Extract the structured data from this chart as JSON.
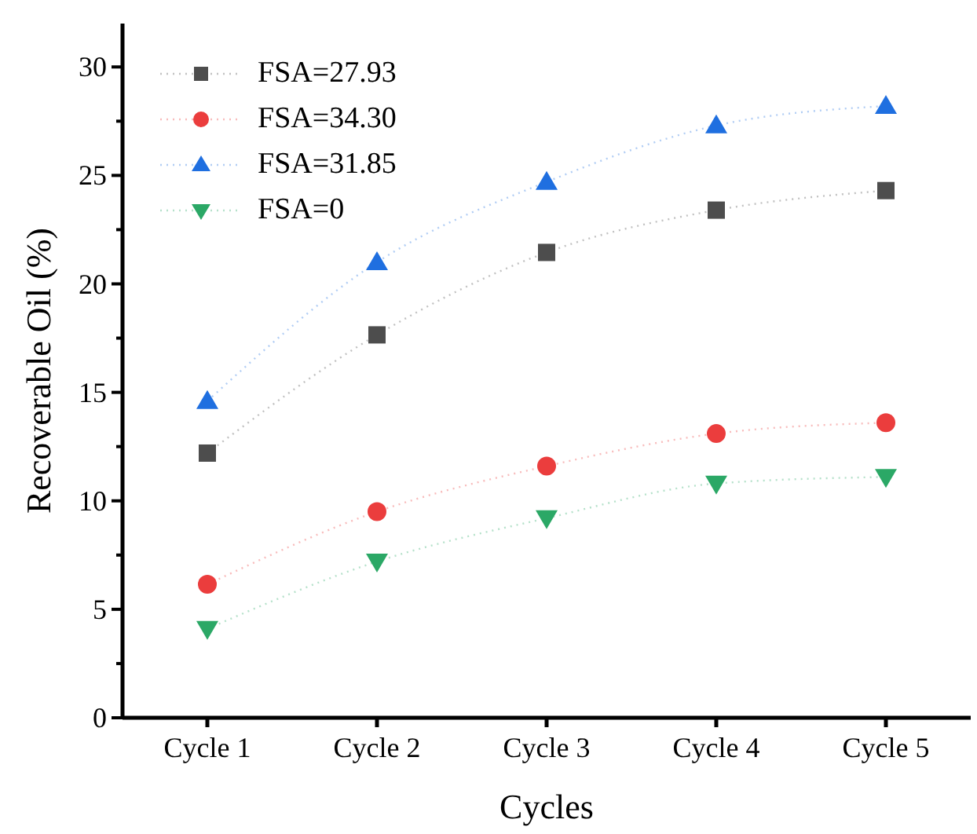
{
  "chart_data": {
    "type": "line",
    "xlabel": "Cycles",
    "ylabel": "Recoverable Oil (%)",
    "categories": [
      "Cycle 1",
      "Cycle 2",
      "Cycle 3",
      "Cycle 4",
      "Cycle 5"
    ],
    "series": [
      {
        "name": "FSA=27.93",
        "color": "#4d4d4d",
        "marker": "square",
        "values": [
          12.2,
          17.65,
          21.45,
          23.4,
          24.3
        ]
      },
      {
        "name": "FSA=34.30",
        "color": "#eb3d3d",
        "marker": "circle",
        "values": [
          6.15,
          9.5,
          11.6,
          13.1,
          13.6
        ]
      },
      {
        "name": "FSA=31.85",
        "color": "#1f6fe0",
        "marker": "triangle",
        "values": [
          14.6,
          21.0,
          24.7,
          27.3,
          28.2
        ]
      },
      {
        "name": "FSA=0",
        "color": "#2ba866",
        "marker": "triangle-down",
        "values": [
          4.1,
          7.2,
          9.2,
          10.8,
          11.1
        ]
      }
    ],
    "ylim": [
      0,
      32
    ],
    "yticks": [
      0,
      {
        "value": 2.5,
        "label": null
      },
      5,
      {
        "value": 7.5,
        "label": null
      },
      10,
      {
        "value": 12.5,
        "label": null
      },
      15,
      {
        "value": 17.5,
        "label": null
      },
      20,
      {
        "value": 22.5,
        "label": null
      },
      25,
      {
        "value": 27.5,
        "label": null
      },
      30
    ],
    "line_style": "dotted",
    "grid": false,
    "legend": "top left"
  }
}
